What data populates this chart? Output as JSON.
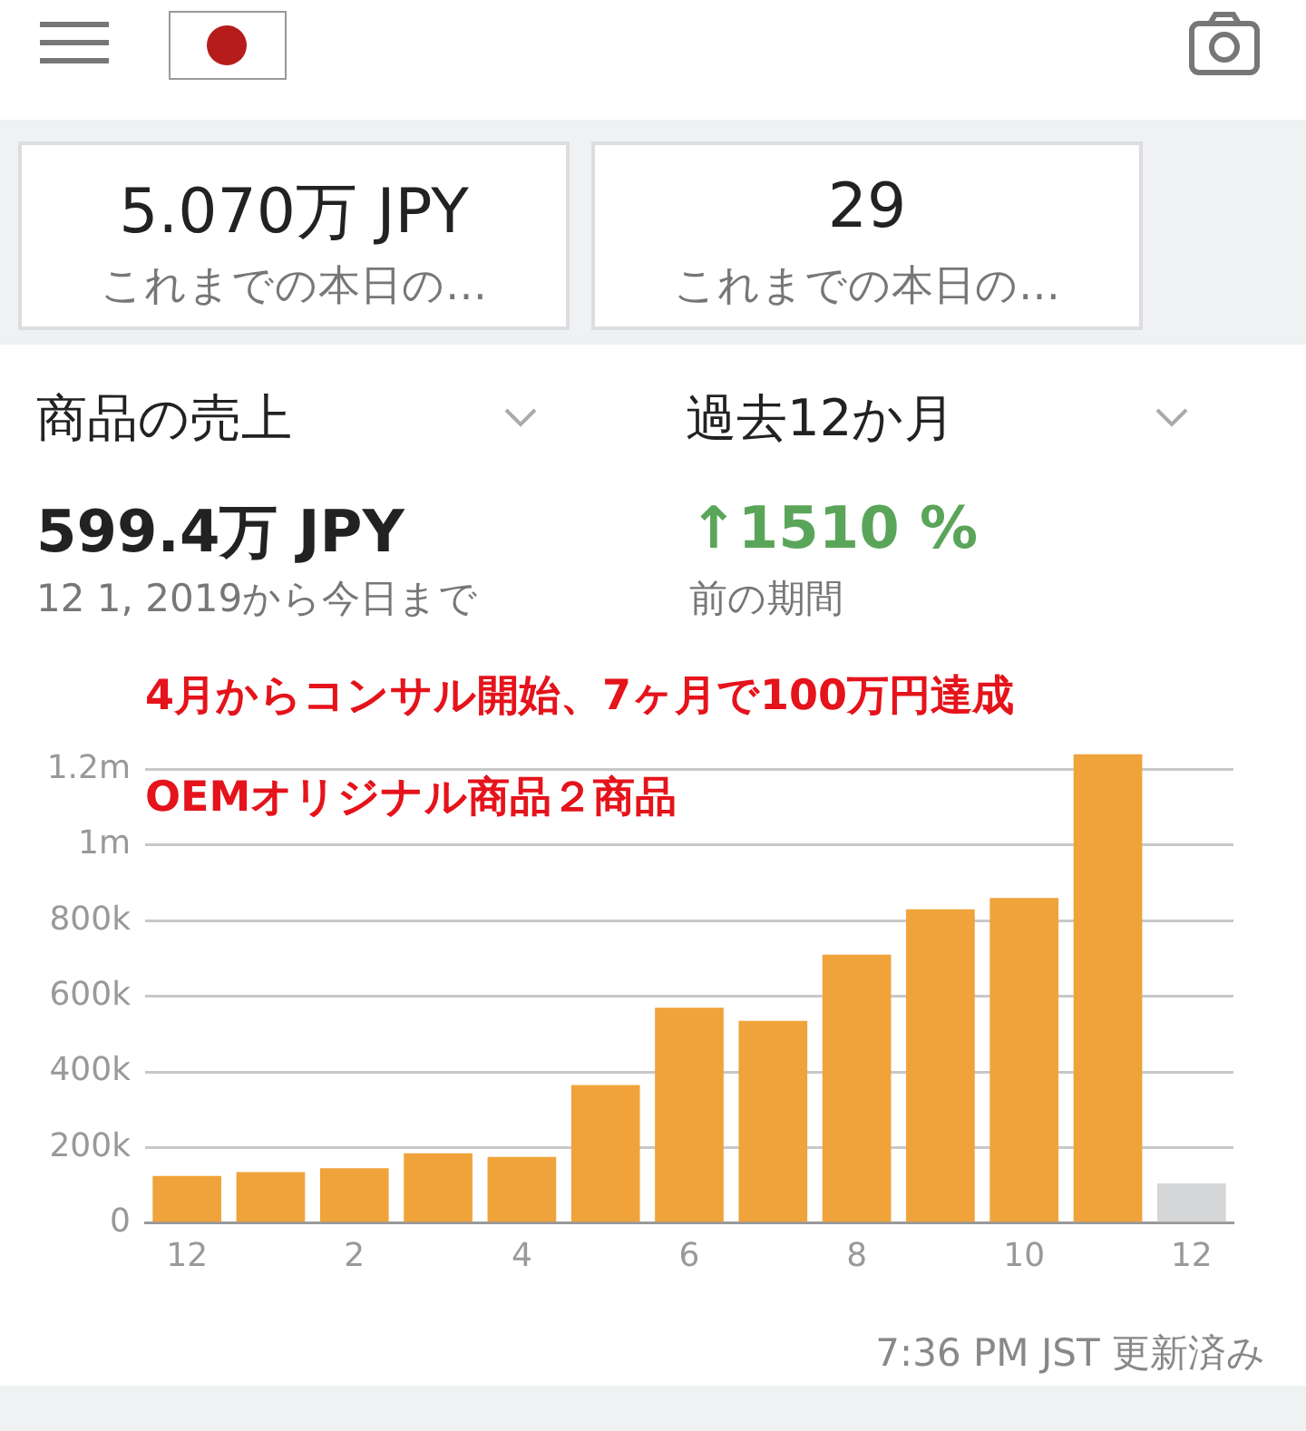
{
  "chart_data": {
    "type": "bar",
    "title": "商品の売上",
    "subtitle": "過去12か月",
    "annotations": [
      "5.070万 JPY",
      "これまでの本日の…",
      "29",
      "これまでの本日の…",
      "599.4万 JPY",
      "12 1, 2019から今日まで",
      "↑1510 %",
      "前の期間",
      "4月からコンサル開始、7ヶ月で100万円達成",
      "OEMオリジナル商品２商品",
      "7:36 PM JST 更新済み"
    ],
    "categories": [
      "12",
      null,
      "2",
      null,
      "4",
      null,
      "6",
      null,
      "8",
      null,
      "10",
      null,
      "12"
    ],
    "values": [
      125000,
      135000,
      145000,
      185000,
      175000,
      365000,
      570000,
      535000,
      710000,
      830000,
      860000,
      1240000,
      105000
    ],
    "colors": [
      "#f0a33a",
      "#f0a33a",
      "#f0a33a",
      "#f0a33a",
      "#f0a33a",
      "#f0a33a",
      "#f0a33a",
      "#f0a33a",
      "#f0a33a",
      "#f0a33a",
      "#f0a33a",
      "#f0a33a",
      "#d5d6d8"
    ],
    "ylim": [
      0,
      1250000
    ],
    "yticks": [
      0,
      {
        "value": 200000,
        "label": "200k"
      },
      {
        "value": 400000,
        "label": "400k"
      },
      {
        "value": 600000,
        "label": "600k"
      },
      {
        "value": 800000,
        "label": "800k"
      },
      {
        "value": 1000000,
        "label": "1m"
      },
      {
        "value": 1200000,
        "label": "1.2m"
      }
    ],
    "grid": "y",
    "legend": false
  }
}
